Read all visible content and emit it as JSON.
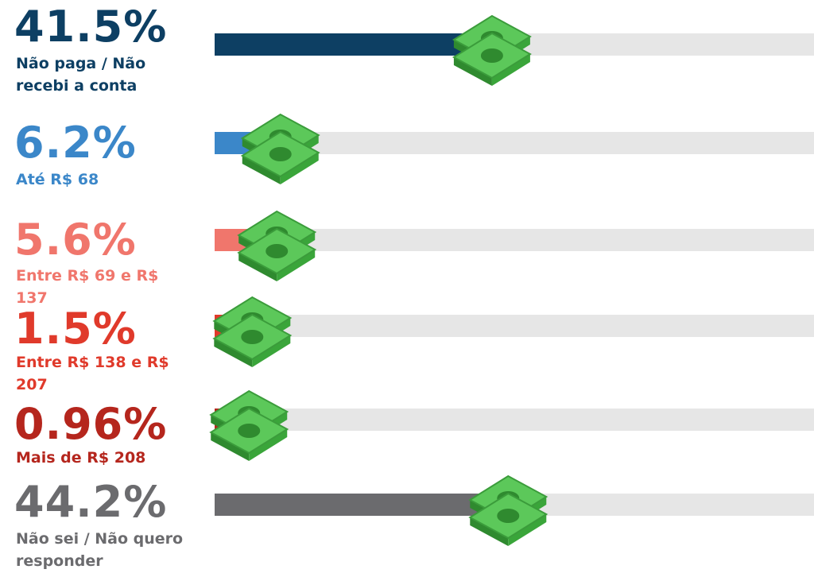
{
  "chart_data": {
    "type": "bar",
    "categories": [
      "Não paga / Não recebi a conta",
      "Até R$ 68",
      "Entre R$ 69 e R$ 137",
      "Entre R$ 138 e R$ 207",
      "Mais de R$ 208",
      "Não sei / Não quero responder"
    ],
    "values": [
      41.5,
      6.2,
      5.6,
      1.5,
      0.96,
      44.2
    ],
    "value_labels": [
      "41.5%",
      "6.2%",
      "5.6%",
      "1.5%",
      "0.96%",
      "44.2%"
    ],
    "colors": [
      "#0d3f63",
      "#3b87c9",
      "#f0766c",
      "#e03a2b",
      "#b5261d",
      "#6b6b6e"
    ],
    "xlim": [
      0,
      100
    ]
  }
}
